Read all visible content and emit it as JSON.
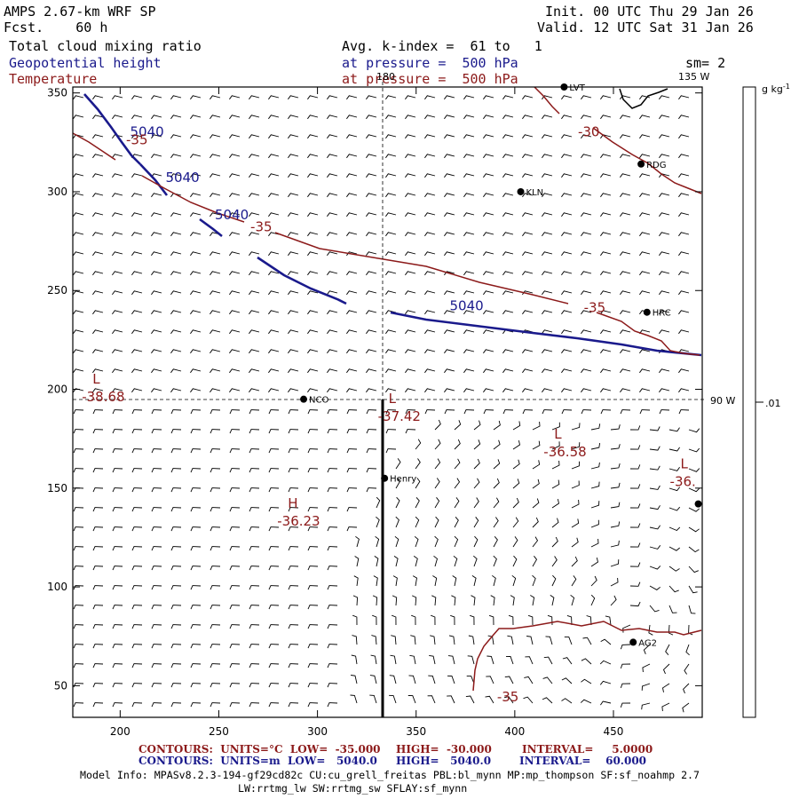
{
  "header": {
    "model": "AMPS 2.67-km WRF SP",
    "forecast": "Fcst.    60 h",
    "init": "Init. 00 UTC Thu 29 Jan 26",
    "valid": "Valid. 12 UTC Sat 31 Jan 26",
    "field1": "Total cloud mixing ratio",
    "field2": "Geopotential height",
    "field3": "Temperature",
    "avg": "Avg. k-index =  61 to   1",
    "pressure1": "at pressure =  500 hPa",
    "pressure2": "at pressure =  500 hPa",
    "smooth": "sm= 2"
  },
  "colorbar": {
    "units": "g kg",
    "units_sup": "-1",
    "tick": ".01"
  },
  "colors": {
    "height": "#1a1a8c",
    "temp": "#8c1a1a",
    "text": "#000000"
  },
  "axes": {
    "x_ticks": [
      "200",
      "250",
      "300",
      "350",
      "400",
      "450"
    ],
    "y_ticks": [
      "350",
      "300",
      "250",
      "200",
      "150",
      "100",
      "50"
    ],
    "x_values": [
      200,
      250,
      300,
      350,
      400,
      450
    ],
    "y_values": [
      350,
      300,
      250,
      200,
      150,
      100,
      50
    ],
    "x_range": [
      176,
      495
    ],
    "y_range": [
      34,
      353
    ]
  },
  "meridians": {
    "lon180": "180",
    "lon135": "135 W",
    "lon90": "90 W"
  },
  "stations": [
    {
      "name": "LVT",
      "x": 425,
      "y": 353
    },
    {
      "name": "RDG",
      "x": 464,
      "y": 314
    },
    {
      "name": "KLN",
      "x": 403,
      "y": 300
    },
    {
      "name": "HRC",
      "x": 467,
      "y": 239
    },
    {
      "name": "NCO",
      "x": 293,
      "y": 195
    },
    {
      "name": "Henry",
      "x": 334,
      "y": 155
    },
    {
      "name": "",
      "x": 493,
      "y": 142
    },
    {
      "name": "AG2",
      "x": 460,
      "y": 72
    }
  ],
  "extrema": [
    {
      "type": "L",
      "value": "-38.68",
      "x": 186,
      "y": 203
    },
    {
      "type": "L",
      "value": "-37.42",
      "x": 336,
      "y": 193
    },
    {
      "type": "L",
      "value": "-36.58",
      "x": 420,
      "y": 175
    },
    {
      "type": "L",
      "value": "-36.",
      "x": 484,
      "y": 160
    },
    {
      "type": "H",
      "value": "-36.23",
      "x": 285,
      "y": 140
    }
  ],
  "contour_labels": {
    "height": [
      {
        "text": "5040",
        "x": 205,
        "y": 328
      },
      {
        "text": "5040",
        "x": 223,
        "y": 305
      },
      {
        "text": "5040",
        "x": 248,
        "y": 286
      },
      {
        "text": "5040",
        "x": 367,
        "y": 240
      }
    ],
    "temp": [
      {
        "text": "-35",
        "x": 203,
        "y": 324
      },
      {
        "text": "-35",
        "x": 266,
        "y": 280
      },
      {
        "text": "-35",
        "x": 435,
        "y": 239
      },
      {
        "text": "-30",
        "x": 432,
        "y": 328
      },
      {
        "text": "-35",
        "x": 391,
        "y": 42
      }
    ]
  },
  "footer": {
    "line1_a": "CONTOURS:  UNITS=°C  LOW=  -35.000",
    "line1_b": "HIGH=  -30.000",
    "line1_c": "INTERVAL=     5.0000",
    "line2_a": "CONTOURS:  UNITS=m  LOW=   5040.0",
    "line2_b": "HIGH=   5040.0",
    "line2_c": "INTERVAL=    60.000",
    "info1": "Model Info: MPASv8.2.3-194-gf29cd82c CU:cu_grell_freitas PBL:bl_mynn MP:mp_thompson SF:sf_noahmp 2.7",
    "info2": "LW:rrtmg_lw SW:rrtmg_sw SFLAY:sf_mynn"
  }
}
